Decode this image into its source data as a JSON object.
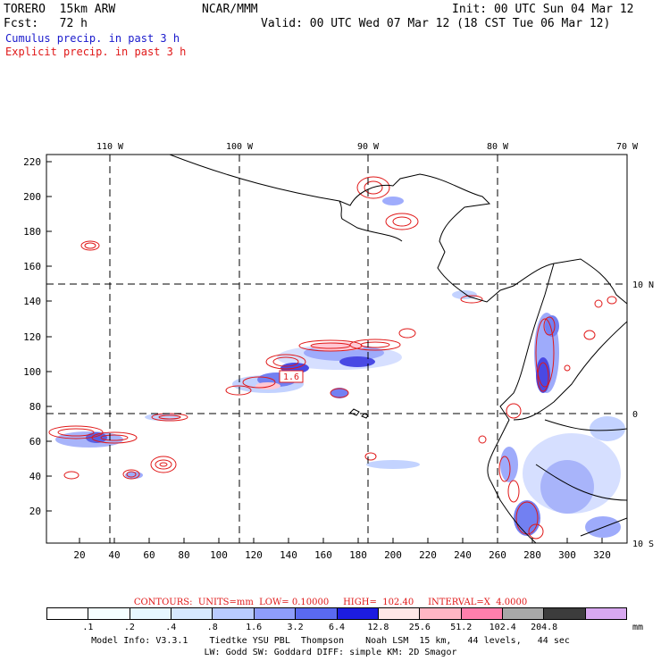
{
  "header": {
    "model": "TORERO  15km ARW",
    "org": "NCAR/MMM",
    "init": "Init: 00 UTC Sun 04 Mar 12",
    "fcst": "Fcst:   72 h",
    "valid": "Valid: 00 UTC Wed 07 Mar 12 (18 CST Tue 06 Mar 12)",
    "line_cumulus": "Cumulus precip. in past 3 h",
    "line_explicit": "Explicit precip. in past 3 h",
    "color_cumulus": "#1a1acc",
    "color_explicit": "#e01818"
  },
  "map": {
    "top_lon_labels": [
      "110 W",
      "100 W",
      "90 W",
      "80 W",
      "70 W"
    ],
    "right_lat_labels": [
      "10 N",
      "0",
      "10 S"
    ],
    "y_ticks": [
      "220",
      "200",
      "180",
      "160",
      "140",
      "120",
      "100",
      "80",
      "60",
      "40",
      "20"
    ],
    "x_ticks": [
      "20",
      "40",
      "60",
      "80",
      "100",
      "120",
      "140",
      "160",
      "180",
      "200",
      "220",
      "240",
      "260",
      "280",
      "300",
      "320"
    ],
    "box_label": "1.6"
  },
  "contour_info": {
    "text": "CONTOURS:  UNITS=mm  LOW= 0.10000     HIGH=  102.40     INTERVAL=X  4.0000"
  },
  "legend": {
    "colors": [
      "#ffffff",
      "#f4ffff",
      "#e6f7ff",
      "#d6e8ff",
      "#b9cbff",
      "#8e9dfb",
      "#5a6af0",
      "#1c1ce0",
      "#ffe6e6",
      "#ffb6c4",
      "#ff7fac",
      "#a8a8a8",
      "#3c3c3c",
      "#d8a8f0"
    ],
    "labels": [
      ".1",
      ".2",
      ".4",
      ".8",
      "1.6",
      "3.2",
      "6.4",
      "12.8",
      "25.6",
      "51.2",
      "102.4",
      "204.8"
    ],
    "unit": "mm"
  },
  "footer": {
    "line1": "Model Info: V3.3.1    Tiedtke YSU PBL  Thompson    Noah LSM  15 km,   44 levels,   44 sec",
    "line2": "LW: Godd SW: Goddard DIFF: simple KM: 2D Smagor"
  }
}
